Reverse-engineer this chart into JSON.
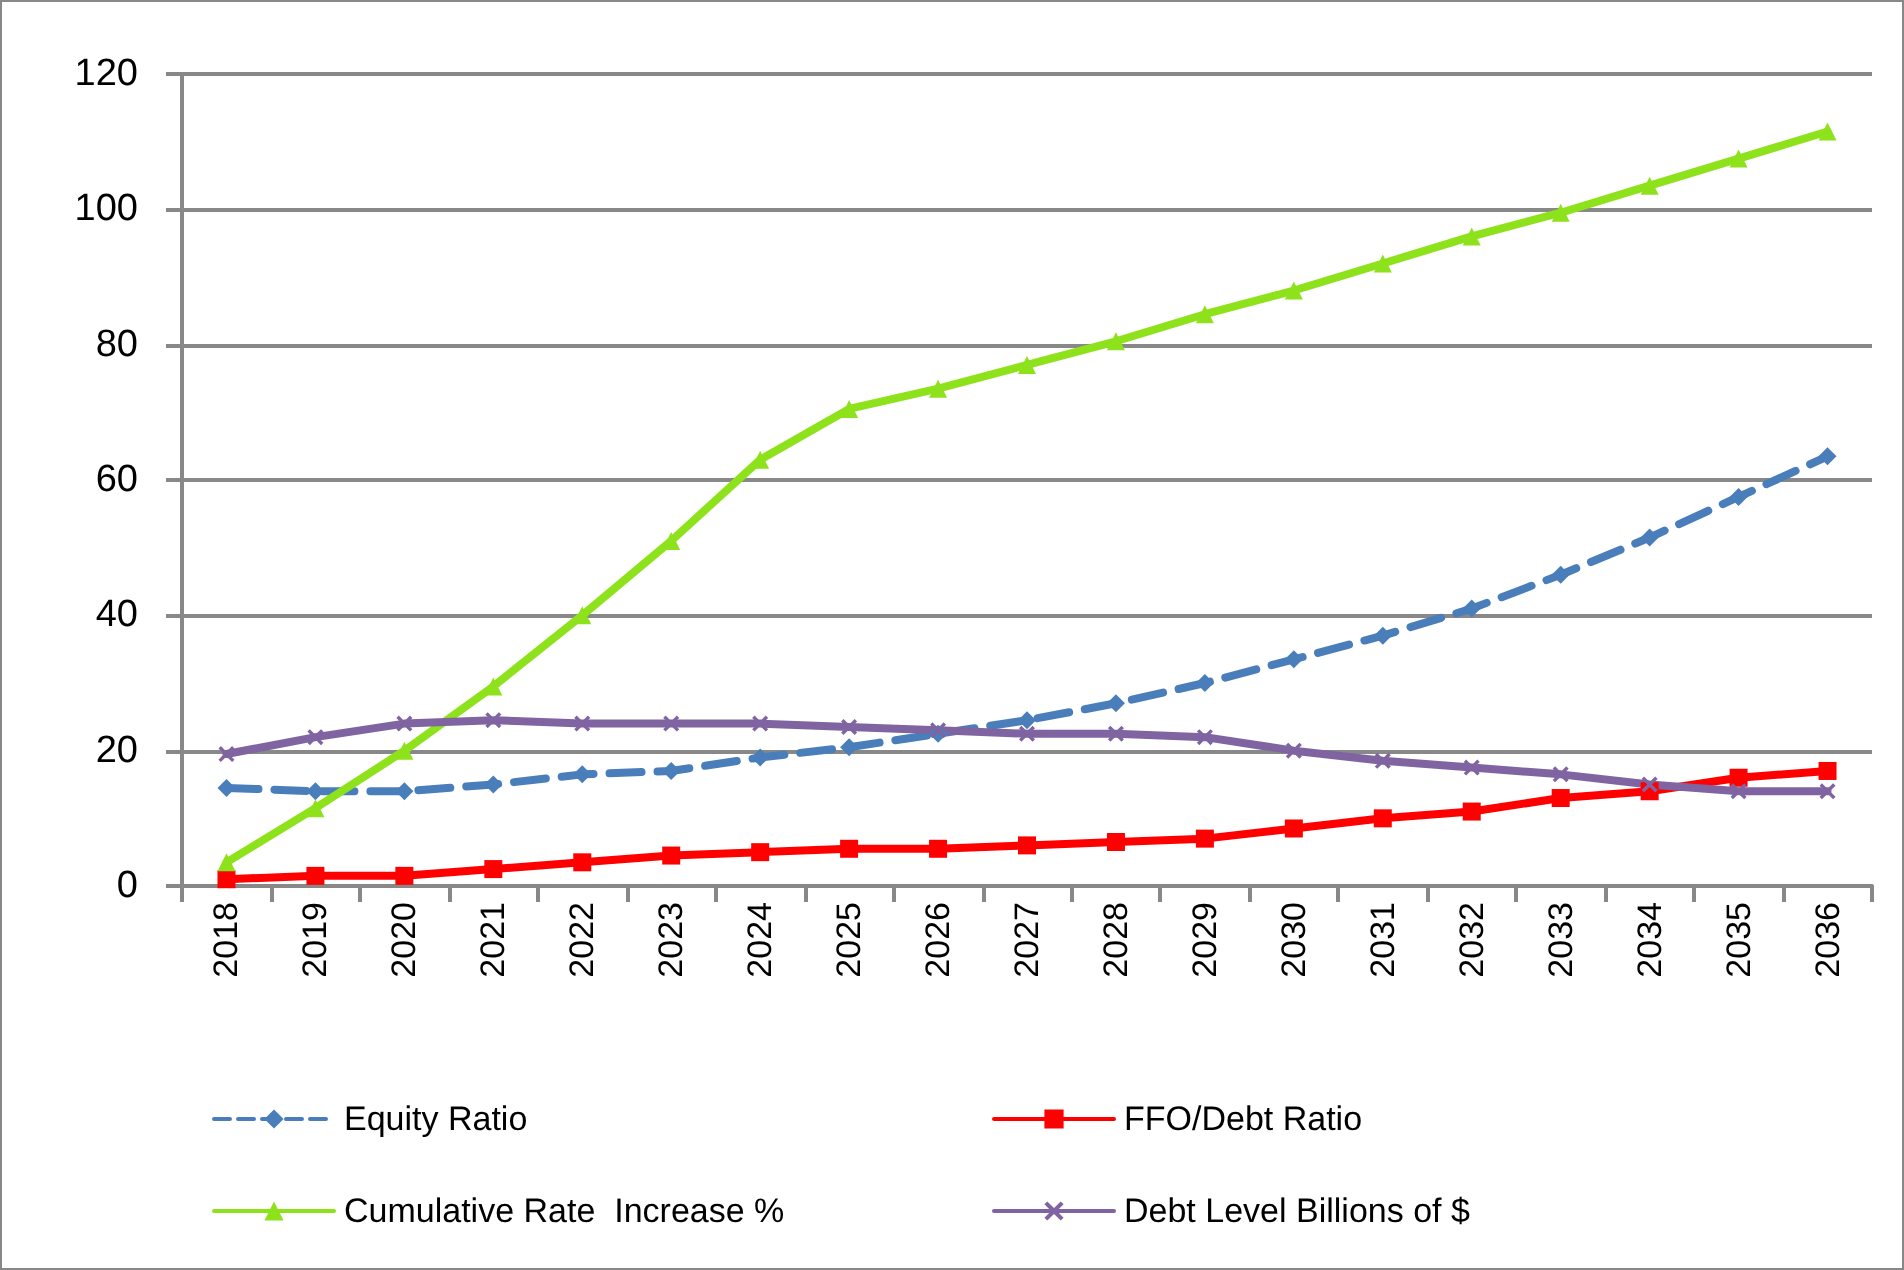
{
  "chart_data": {
    "type": "line",
    "categories": [
      "2018",
      "2019",
      "2020",
      "2021",
      "2022",
      "2023",
      "2024",
      "2025",
      "2026",
      "2027",
      "2028",
      "2029",
      "2030",
      "2031",
      "2032",
      "2033",
      "2034",
      "2035",
      "2036"
    ],
    "series": [
      {
        "name": "Equity Ratio",
        "color": "#4a7ebb",
        "marker": "diamond",
        "line_style": "dashed",
        "values": [
          14.5,
          14,
          14,
          15,
          16.5,
          17,
          19,
          20.5,
          22.5,
          24.5,
          27,
          30,
          33.5,
          37,
          41,
          46,
          51.5,
          57.5,
          63.5
        ]
      },
      {
        "name": "FFO/Debt Ratio",
        "color": "#ff0000",
        "marker": "square",
        "line_style": "solid",
        "values": [
          1,
          1.5,
          1.5,
          2.5,
          3.5,
          4.5,
          5,
          5.5,
          5.5,
          6,
          6.5,
          7,
          8.5,
          10,
          11,
          13,
          14,
          16,
          17
        ]
      },
      {
        "name": "Cumulative Rate  Increase %",
        "color": "#8ee21b",
        "marker": "triangle",
        "line_style": "solid",
        "values": [
          3.5,
          11.5,
          20,
          29.5,
          40,
          51,
          63,
          70.5,
          73.5,
          77,
          80.5,
          84.5,
          88,
          92,
          96,
          99.5,
          103.5,
          107.5,
          111.5
        ]
      },
      {
        "name": "Debt Level Billions of $",
        "color": "#8064a2",
        "marker": "cross",
        "line_style": "solid",
        "values": [
          19.5,
          22,
          24,
          24.5,
          24,
          24,
          24,
          23.5,
          23,
          22.5,
          22.5,
          22,
          20,
          18.5,
          17.5,
          16.5,
          15,
          14,
          14
        ]
      }
    ],
    "ylim": [
      0,
      120
    ],
    "yticks": [
      0,
      20,
      40,
      60,
      80,
      100,
      120
    ],
    "grid": "y",
    "legend": "bottom"
  }
}
